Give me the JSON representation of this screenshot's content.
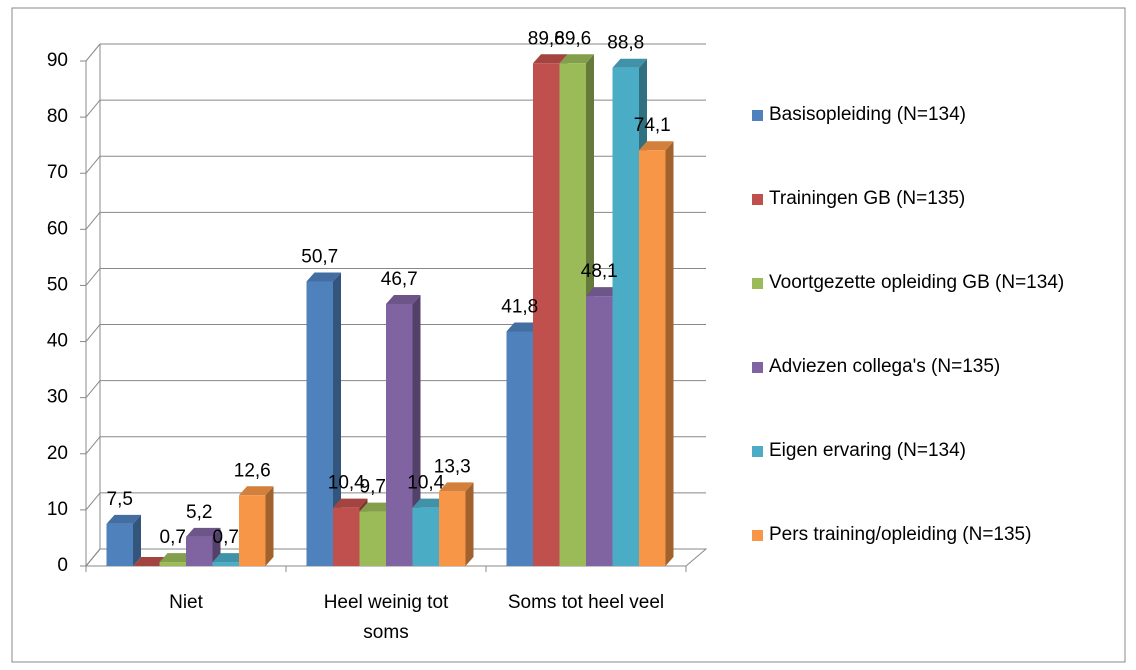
{
  "chart_data": {
    "type": "bar3d",
    "categories": [
      "Niet",
      "Heel weinig tot soms",
      "Soms tot heel veel"
    ],
    "series": [
      {
        "name": "Basisopleiding (N=134)",
        "color": "#4f81bd",
        "values": [
          7.5,
          50.7,
          41.8
        ],
        "value_labels": [
          "7,5",
          "50,7",
          "41,8"
        ]
      },
      {
        "name": "Trainingen GB (N=135)",
        "color": "#c0504d",
        "values": [
          0,
          10.4,
          89.6
        ],
        "value_labels": [
          null,
          "10,4",
          "89,6"
        ]
      },
      {
        "name": "Voortgezette opleiding GB (N=134)",
        "color": "#9bbb59",
        "values": [
          0.7,
          9.7,
          89.6
        ],
        "value_labels": [
          "0,7",
          "9,7",
          "89,6"
        ]
      },
      {
        "name": "Adviezen collega's (N=135)",
        "color": "#8064a2",
        "values": [
          5.2,
          46.7,
          48.1
        ],
        "value_labels": [
          "5,2",
          "46,7",
          "48,1"
        ]
      },
      {
        "name": "Eigen ervaring (N=134)",
        "color": "#4bacc6",
        "values": [
          0.7,
          10.4,
          88.8
        ],
        "value_labels": [
          "0,7",
          "10,4",
          "88,8"
        ]
      },
      {
        "name": "Pers training/opleiding (N=135)",
        "color": "#f79646",
        "values": [
          12.6,
          13.3,
          74.1
        ],
        "value_labels": [
          "12,6",
          "13,3",
          "74,1"
        ]
      }
    ],
    "ylim": [
      0,
      90
    ],
    "yticks": [
      0,
      10,
      20,
      30,
      40,
      50,
      60,
      70,
      80,
      90
    ],
    "grid": true,
    "legend": "right"
  }
}
